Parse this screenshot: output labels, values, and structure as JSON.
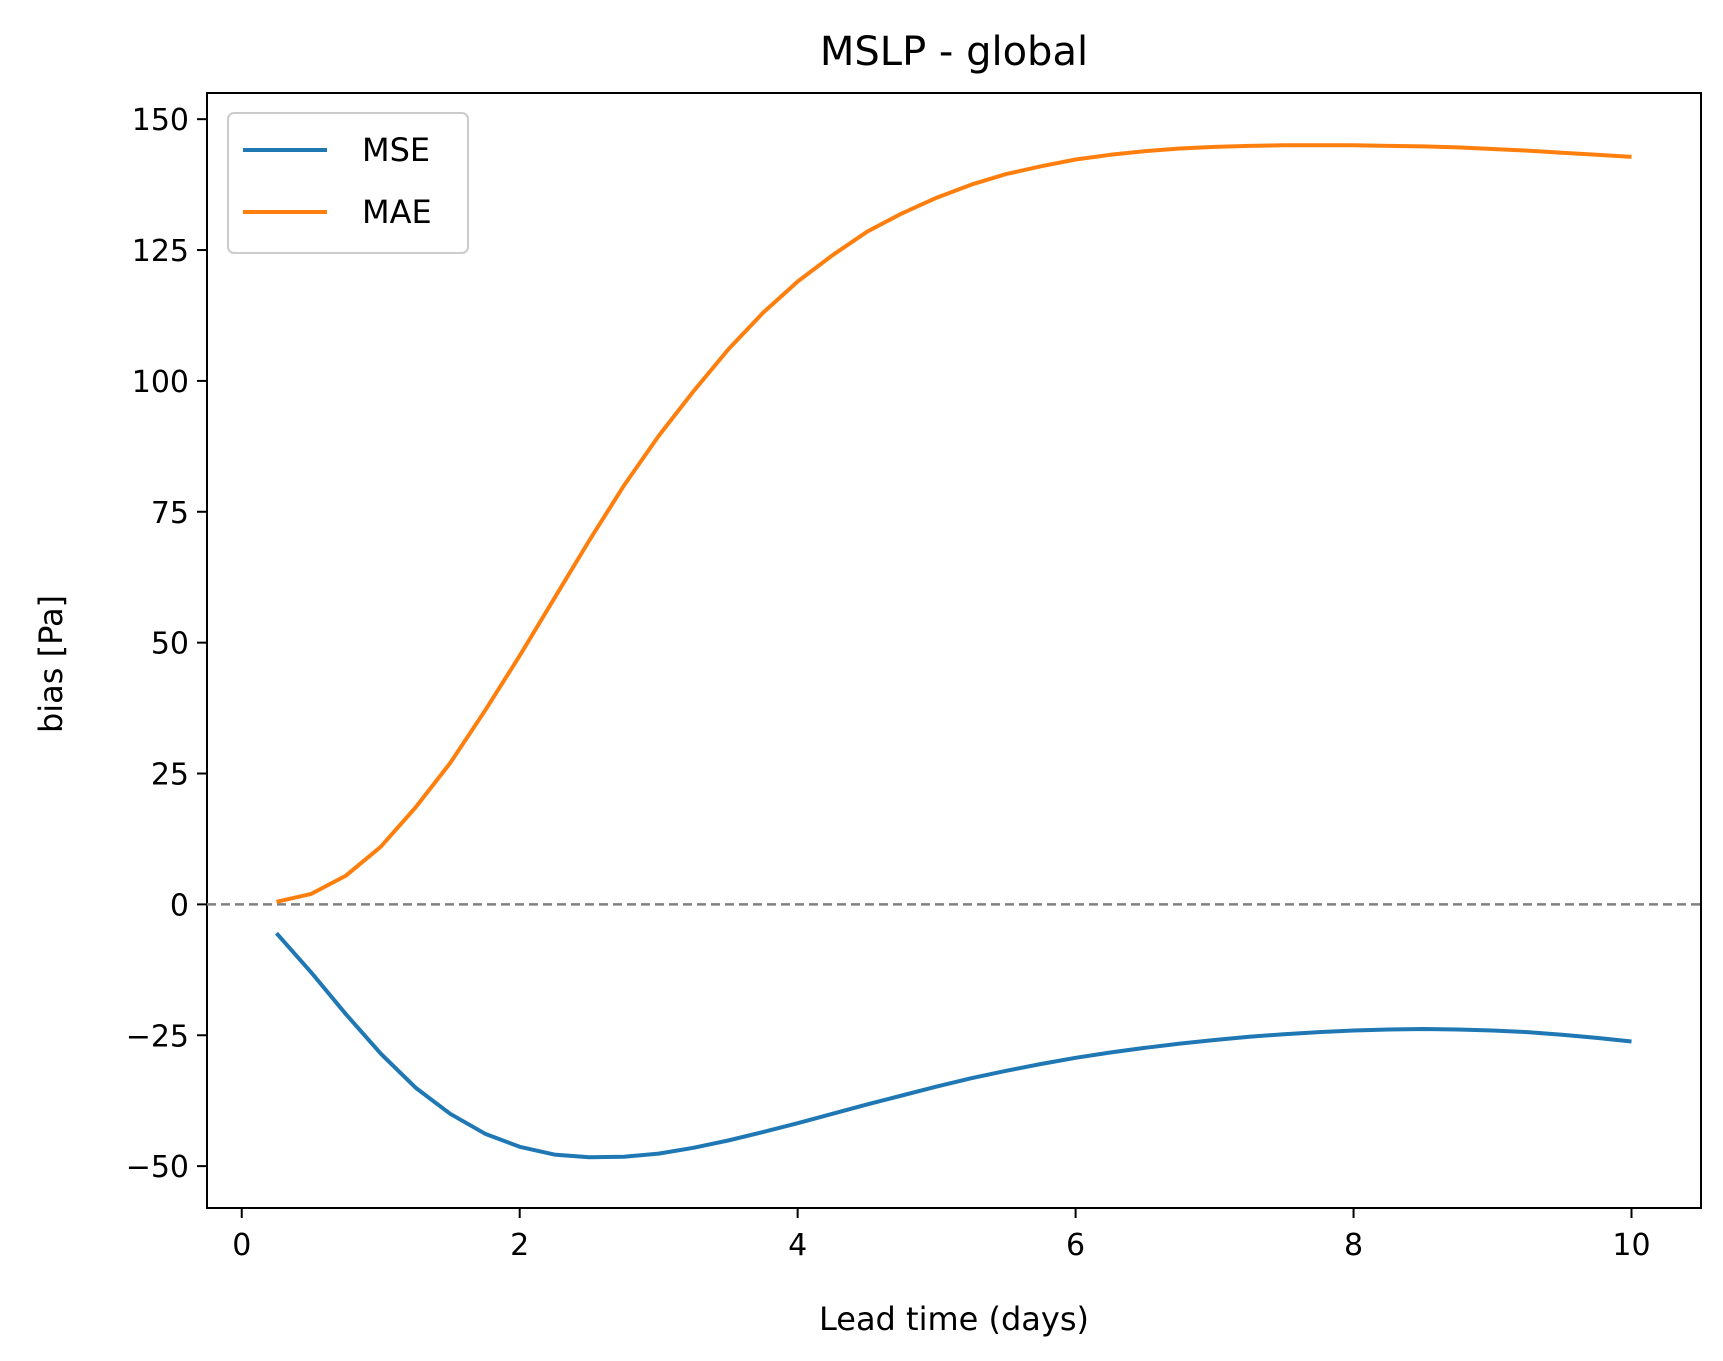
{
  "chart_data": {
    "type": "line",
    "title": "MSLP - global",
    "xlabel": "Lead time (days)",
    "ylabel": "bias [Pa]",
    "xlim": [
      -0.25,
      10.5
    ],
    "ylim": [
      -58,
      155
    ],
    "xticks": [
      0,
      2,
      4,
      6,
      8,
      10
    ],
    "yticks": [
      -50,
      -25,
      0,
      25,
      50,
      75,
      100,
      125,
      150
    ],
    "ytick_labels": [
      "−50",
      "−25",
      "0",
      "25",
      "50",
      "75",
      "100",
      "125",
      "150"
    ],
    "grid": false,
    "legend_position": "top-left",
    "reference_line": {
      "y": 0,
      "style": "dashed",
      "color": "#808080"
    },
    "x": [
      0.25,
      0.5,
      0.75,
      1.0,
      1.25,
      1.5,
      1.75,
      2.0,
      2.25,
      2.5,
      2.75,
      3.0,
      3.25,
      3.5,
      3.75,
      4.0,
      4.25,
      4.5,
      4.75,
      5.0,
      5.25,
      5.5,
      5.75,
      6.0,
      6.25,
      6.5,
      6.75,
      7.0,
      7.25,
      7.5,
      7.75,
      8.0,
      8.25,
      8.5,
      8.75,
      9.0,
      9.25,
      9.5,
      9.75,
      10.0
    ],
    "series": [
      {
        "name": "MSE",
        "color": "#1f77b4",
        "values": [
          -5.5,
          -13.0,
          -21.0,
          -28.5,
          -35.0,
          -40.0,
          -43.8,
          -46.3,
          -47.8,
          -48.3,
          -48.2,
          -47.6,
          -46.5,
          -45.1,
          -43.5,
          -41.8,
          -40.0,
          -38.2,
          -36.5,
          -34.8,
          -33.2,
          -31.8,
          -30.5,
          -29.3,
          -28.3,
          -27.4,
          -26.6,
          -25.9,
          -25.3,
          -24.8,
          -24.4,
          -24.1,
          -23.9,
          -23.8,
          -23.9,
          -24.1,
          -24.4,
          -24.9,
          -25.5,
          -26.2
        ]
      },
      {
        "name": "MAE",
        "color": "#ff7f0e",
        "values": [
          0.5,
          2.0,
          5.5,
          11.0,
          18.5,
          27.0,
          37.0,
          47.5,
          58.5,
          69.5,
          80.0,
          89.5,
          98.0,
          106.0,
          113.0,
          119.0,
          124.0,
          128.5,
          132.0,
          135.0,
          137.5,
          139.5,
          141.0,
          142.3,
          143.2,
          143.9,
          144.4,
          144.7,
          144.9,
          145.0,
          145.0,
          145.0,
          144.9,
          144.8,
          144.6,
          144.3,
          144.0,
          143.6,
          143.2,
          142.8
        ]
      }
    ]
  }
}
